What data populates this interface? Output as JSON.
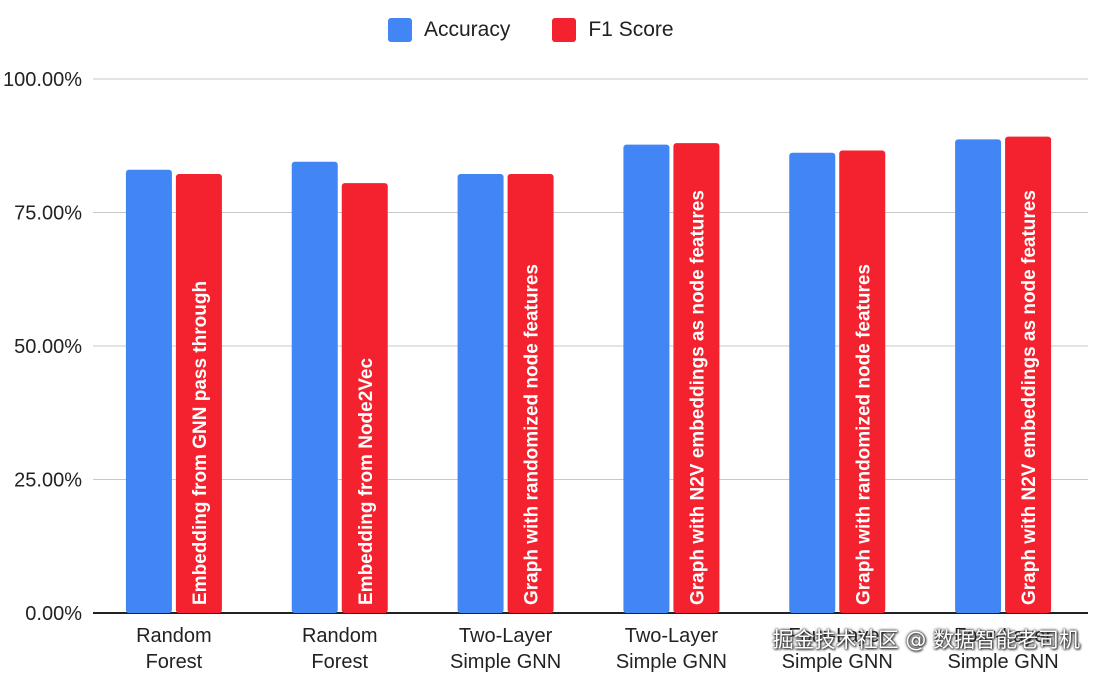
{
  "chart_data": {
    "type": "bar",
    "categories": [
      [
        "Random",
        "Forest"
      ],
      [
        "Random",
        "Forest"
      ],
      [
        "Two-Layer",
        "Simple GNN"
      ],
      [
        "Two-Layer",
        "Simple GNN"
      ],
      [
        "Four-Layer",
        "Simple GNN"
      ],
      [
        "Four-Layer",
        "Simple GNN"
      ]
    ],
    "bar_annotations": [
      "Embedding from GNN pass through",
      "Embedding from Node2Vec",
      "Graph with randomized node features",
      "Graph with N2V embeddings as node features",
      "Graph with randomized node features",
      "Graph with N2V embeddings as node features"
    ],
    "series": [
      {
        "name": "Accuracy",
        "color": "#4285f4",
        "values": [
          83.0,
          84.5,
          82.2,
          87.7,
          86.2,
          88.7
        ]
      },
      {
        "name": "F1 Score",
        "color": "#f4212e",
        "values": [
          82.2,
          80.5,
          82.2,
          88.0,
          86.6,
          89.2
        ]
      }
    ],
    "ylim": [
      0,
      100
    ],
    "yticks": [
      "0.00%",
      "25.00%",
      "50.00%",
      "75.00%",
      "100.00%"
    ],
    "ytick_values": [
      0,
      25,
      50,
      75,
      100
    ],
    "grid": true,
    "legend_position": "top-center"
  },
  "watermark": "掘金技术社区 @ 数据智能老司机"
}
